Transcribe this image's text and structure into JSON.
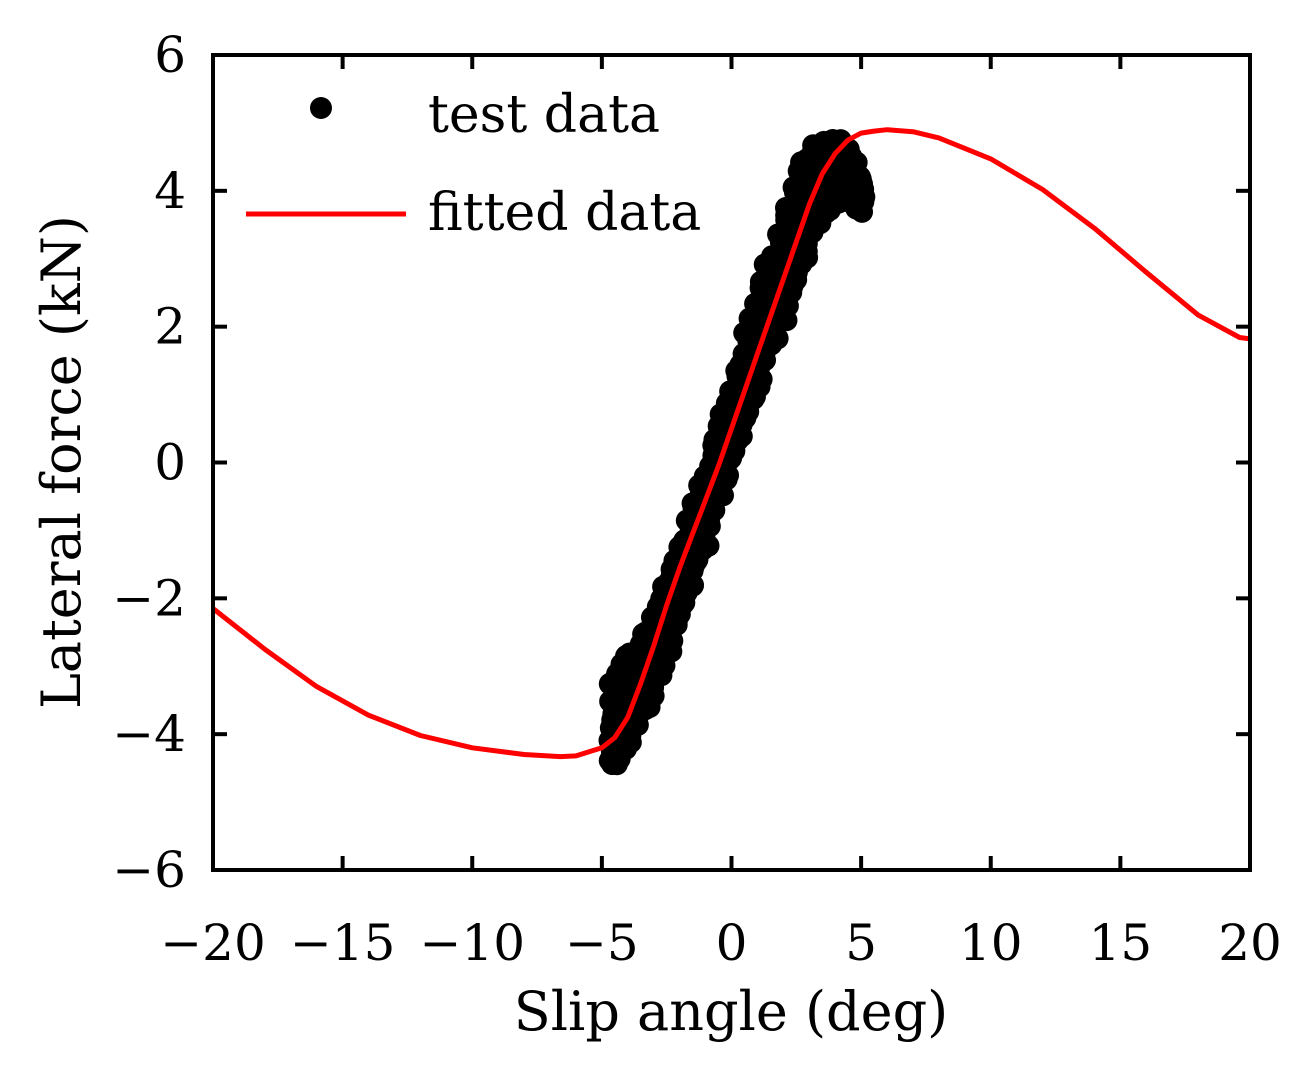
{
  "chart_data": {
    "type": "line",
    "title": "",
    "xlabel": "Slip angle (deg)",
    "ylabel": "Lateral force (kN)",
    "xlim": [
      -20,
      20
    ],
    "ylim": [
      -6,
      6
    ],
    "xticks": [
      -20,
      -15,
      -10,
      -5,
      0,
      5,
      10,
      15,
      20
    ],
    "yticks": [
      -6,
      -4,
      -2,
      0,
      2,
      4,
      6
    ],
    "xtick_labels": [
      "−20",
      "−15",
      "−10",
      "−5",
      "0",
      "5",
      "10",
      "15",
      "20"
    ],
    "ytick_labels": [
      "−6",
      "−4",
      "−2",
      "0",
      "2",
      "4",
      "6"
    ],
    "grid": false,
    "legend_position": "top-left",
    "series": [
      {
        "name": "test data",
        "kind": "scatter",
        "color": "#000000",
        "x": [
          -4.6,
          -4.4,
          -4.2,
          -4.0,
          -3.8,
          -3.6,
          -3.4,
          -3.2,
          -3.0,
          -2.8,
          -2.6,
          -2.4,
          -2.2,
          -2.0,
          -1.8,
          -1.6,
          -1.4,
          -1.2,
          -1.0,
          -0.8,
          -0.6,
          -0.4,
          -0.2,
          0.0,
          0.2,
          0.4,
          0.6,
          0.8,
          1.0,
          1.2,
          1.4,
          1.6,
          1.8,
          2.0,
          2.2,
          2.4,
          2.6,
          2.8,
          3.0,
          3.2,
          3.4,
          3.6,
          3.8,
          4.0,
          4.2,
          4.4,
          4.6,
          4.8,
          5.0
        ],
        "y_center": [
          -3.8,
          -3.75,
          -3.65,
          -3.55,
          -3.45,
          -3.3,
          -3.15,
          -3.0,
          -2.85,
          -2.65,
          -2.45,
          -2.25,
          -2.0,
          -1.8,
          -1.6,
          -1.35,
          -1.1,
          -0.9,
          -0.65,
          -0.4,
          -0.15,
          0.1,
          0.3,
          0.55,
          0.8,
          1.0,
          1.25,
          1.5,
          1.7,
          1.95,
          2.2,
          2.4,
          2.6,
          2.85,
          3.05,
          3.3,
          3.5,
          3.7,
          3.85,
          4.0,
          4.1,
          4.2,
          4.25,
          4.3,
          4.3,
          4.25,
          4.2,
          4.1,
          4.0
        ],
        "y_spread": [
          0.65,
          0.7,
          0.7,
          0.65,
          0.6,
          0.6,
          0.55,
          0.55,
          0.55,
          0.55,
          0.55,
          0.55,
          0.55,
          0.5,
          0.5,
          0.5,
          0.5,
          0.5,
          0.5,
          0.5,
          0.55,
          0.55,
          0.55,
          0.55,
          0.6,
          0.6,
          0.6,
          0.6,
          0.6,
          0.65,
          0.65,
          0.7,
          0.7,
          0.75,
          0.75,
          0.75,
          0.75,
          0.7,
          0.7,
          0.65,
          0.6,
          0.55,
          0.5,
          0.45,
          0.4,
          0.35,
          0.35,
          0.3,
          0.25
        ]
      },
      {
        "name": "fitted data",
        "kind": "line",
        "color": "#ff0000",
        "x": [
          -20,
          -18,
          -16,
          -14,
          -12,
          -10,
          -8,
          -6.6,
          -6,
          -5,
          -4.5,
          -4,
          -3.5,
          -3,
          -2.5,
          -2,
          -1.5,
          -1,
          -0.5,
          0,
          0.5,
          1,
          1.5,
          2,
          2.5,
          3,
          3.5,
          4,
          4.5,
          5,
          5.5,
          6,
          7,
          8,
          10,
          12,
          14,
          16,
          18,
          19.6,
          20
        ],
        "y": [
          -2.15,
          -2.75,
          -3.3,
          -3.72,
          -4.02,
          -4.2,
          -4.3,
          -4.33,
          -4.32,
          -4.2,
          -4.05,
          -3.75,
          -3.25,
          -2.7,
          -2.1,
          -1.55,
          -1.05,
          -0.55,
          -0.05,
          0.5,
          1.05,
          1.6,
          2.15,
          2.7,
          3.25,
          3.8,
          4.25,
          4.55,
          4.75,
          4.85,
          4.88,
          4.9,
          4.87,
          4.78,
          4.47,
          4.02,
          3.45,
          2.8,
          2.17,
          1.84,
          1.82
        ]
      }
    ],
    "legend": [
      {
        "label": "test data",
        "marker": "dot",
        "color": "#000000"
      },
      {
        "label": "fitted data",
        "marker": "line",
        "color": "#ff0000"
      }
    ]
  }
}
